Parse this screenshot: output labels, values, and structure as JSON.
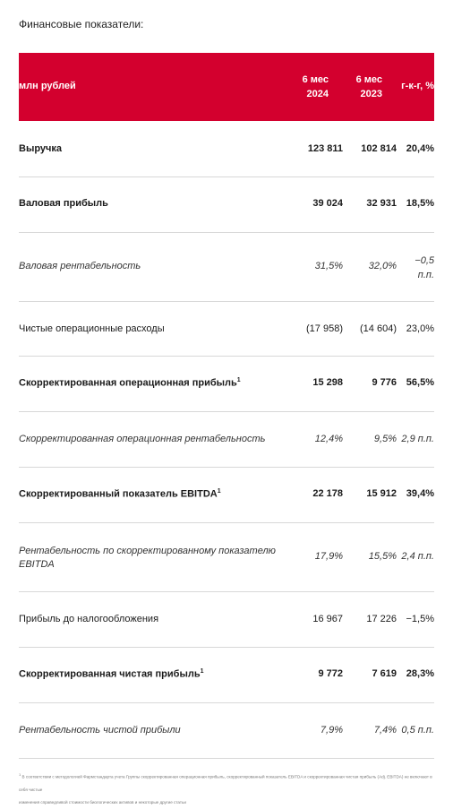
{
  "title": "Финансовые показатели:",
  "header": {
    "label": "млн рублей",
    "col1_line1": "6 мес",
    "col1_line2": "2024",
    "col2_line1": "6 мес",
    "col2_line2": "2023",
    "col3": "г-к-г, %"
  },
  "rows": [
    {
      "label": "Выручка",
      "v1": "123 811",
      "v2": "102 814",
      "v3": "20,4%"
    },
    {
      "label": "Валовая прибыль",
      "v1": "39 024",
      "v2": "32 931",
      "v3": "18,5%"
    },
    {
      "label": "Валовая рентабельность",
      "v1": "31,5%",
      "v2": "32,0%",
      "v3_line1": "−0,5",
      "v3_line2": "п.п."
    },
    {
      "label": "Чистые операционные расходы",
      "v1": "(17 958)",
      "v2": "(14 604)",
      "v3": "23,0%"
    },
    {
      "label": "Скорректированная операционная прибыль",
      "sup": "1",
      "v1": "15 298",
      "v2": "9 776",
      "v3": "56,5%"
    },
    {
      "label": "Скорректированная операционная рентабельность",
      "v1": "12,4%",
      "v2": "9,5%",
      "v3": "2,9 п.п."
    },
    {
      "label": "Скорректированный показатель EBITDA",
      "sup": "1",
      "v1": "22 178",
      "v2": "15 912",
      "v3": "39,4%"
    },
    {
      "label_line1": "Рентабельность по скорректированному показателю",
      "label_line2": "EBITDA",
      "v1": "17,9%",
      "v2": "15,5%",
      "v3": "2,4 п.п."
    },
    {
      "label": "Прибыль до налогообложения",
      "v1": "16 967",
      "v2": "17 226",
      "v3": "−1,5%"
    },
    {
      "label": "Скорректированная чистая прибыль",
      "sup": "1",
      "v1": "9 772",
      "v2": "7 619",
      "v3": "28,3%"
    },
    {
      "label": "Рентабельность чистой прибыли",
      "v1": "7,9%",
      "v2": "7,4%",
      "v3": "0,5 п.п."
    }
  ],
  "footnote": {
    "sup": "1",
    "line1": "В соответствии с методологией Фармстандарта учета Группы скорректированная операционная прибыль, скорректированный показатель EBITDA и скорректированная чистая прибыль (Adj. EBITDA) не включают в себя чистые",
    "line2": "изменения справедливой стоимости биологических активов и некоторые другие статьи"
  }
}
